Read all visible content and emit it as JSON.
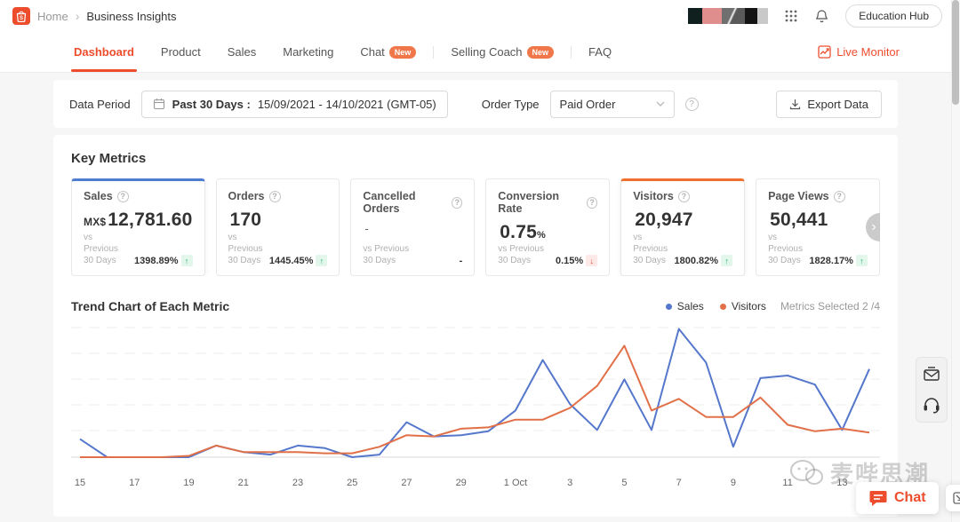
{
  "topbar": {
    "breadcrumb_home": "Home",
    "breadcrumb_sep": "›",
    "breadcrumb_current": "Business Insights",
    "education_hub_label": "Education Hub"
  },
  "nav": {
    "tabs": [
      {
        "label": "Dashboard",
        "active": true
      },
      {
        "label": "Product"
      },
      {
        "label": "Sales"
      },
      {
        "label": "Marketing"
      },
      {
        "label": "Chat",
        "badge": "New"
      },
      {
        "label": "Selling Coach",
        "badge": "New"
      },
      {
        "label": "FAQ"
      }
    ],
    "live_monitor_label": "Live Monitor"
  },
  "filters": {
    "data_period_label": "Data Period",
    "date_range_bold": "Past 30 Days :",
    "date_range_value": "15/09/2021 - 14/10/2021 (GMT-05)",
    "order_type_label": "Order Type",
    "order_type_value": "Paid Order",
    "export_label": "Export Data"
  },
  "key_metrics": {
    "heading": "Key Metrics",
    "cards": [
      {
        "title": "Sales",
        "value_prefix": "MX$",
        "value": "12,781.60",
        "vs_label": "vs Previous 30 Days",
        "change": "1398.89%",
        "direction": "up",
        "accent": "blue"
      },
      {
        "title": "Orders",
        "value": "170",
        "vs_label": "vs Previous 30 Days",
        "change": "1445.45%",
        "direction": "up"
      },
      {
        "title": "Cancelled Orders",
        "value": "-",
        "vs_label": "vs Previous 30 Days",
        "change": "-",
        "direction": "none"
      },
      {
        "title": "Conversion Rate",
        "value": "0.75",
        "value_suffix": "%",
        "vs_label": "vs Previous 30 Days",
        "change": "0.15%",
        "direction": "down"
      },
      {
        "title": "Visitors",
        "value": "20,947",
        "vs_label": "vs Previous 30 Days",
        "change": "1800.82%",
        "direction": "up",
        "accent": "orange"
      },
      {
        "title": "Page Views",
        "value": "50,441",
        "vs_label": "vs Previous 30 Days",
        "change": "1828.17%",
        "direction": "up"
      }
    ]
  },
  "trend": {
    "heading": "Trend Chart of Each Metric",
    "metrics_selected_label": "Metrics Selected 2 /4"
  },
  "chart_data": {
    "type": "line",
    "title": "Trend Chart of Each Metric",
    "x_dates": [
      "15 Sep",
      "16 Sep",
      "17 Sep",
      "18 Sep",
      "19 Sep",
      "20 Sep",
      "21 Sep",
      "22 Sep",
      "23 Sep",
      "24 Sep",
      "25 Sep",
      "26 Sep",
      "27 Sep",
      "28 Sep",
      "29 Sep",
      "30 Sep",
      "1 Oct",
      "2 Oct",
      "3 Oct",
      "4 Oct",
      "5 Oct",
      "6 Oct",
      "7 Oct",
      "8 Oct",
      "9 Oct",
      "10 Oct",
      "11 Oct",
      "12 Oct",
      "13 Oct",
      "14 Oct"
    ],
    "x_tick_labels": [
      "15",
      "17",
      "19",
      "21",
      "23",
      "25",
      "27",
      "29",
      "1 Oct",
      "3",
      "5",
      "7",
      "9",
      "11",
      "13"
    ],
    "series": [
      {
        "name": "Sales",
        "color": "#5577cc",
        "values": [
          14,
          0,
          0,
          0,
          0,
          9,
          4,
          2,
          9,
          7,
          0,
          2,
          27,
          16,
          17,
          20,
          36,
          75,
          41,
          21,
          60,
          21,
          99,
          73,
          8,
          61,
          63,
          56,
          21,
          68
        ]
      },
      {
        "name": "Visitors",
        "color": "#e17048",
        "values": [
          0,
          0,
          0,
          0,
          1,
          9,
          4,
          4,
          4,
          3,
          3,
          8,
          17,
          16,
          22,
          23,
          29,
          29,
          38,
          55,
          86,
          36,
          45,
          31,
          31,
          46,
          25,
          20,
          22,
          19
        ]
      }
    ],
    "ylabel": "",
    "xlabel": "",
    "ylim": [
      0,
      100
    ],
    "y_axis_labeled": false,
    "grid": "horizontal-dashed",
    "legend_position": "top-right",
    "note": "values are relative heights 0-100; y axis unlabeled in source"
  },
  "floating": {
    "chat_label": "Chat",
    "watermark_text": "麦哔思潮"
  }
}
